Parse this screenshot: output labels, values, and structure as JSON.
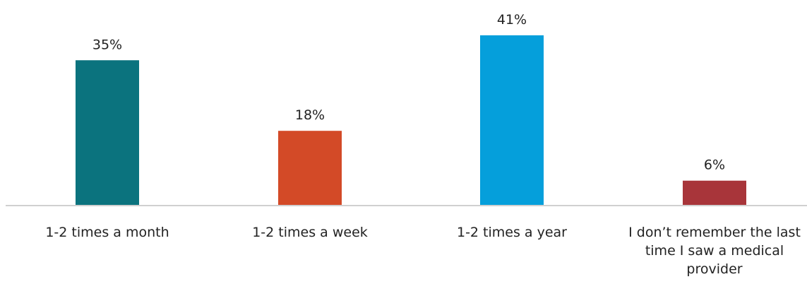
{
  "chart_data": {
    "type": "bar",
    "title": "",
    "xlabel": "",
    "ylabel": "",
    "categories": [
      "1-2 times a month",
      "1-2 times a week",
      "1-2 times a year",
      "I don’t remember the last time I saw a medical provider"
    ],
    "category_lines": [
      [
        "1-2 times a month"
      ],
      [
        "1-2 times a week"
      ],
      [
        "1-2 times a year"
      ],
      [
        "I don’t remember the last",
        "time I saw a medical",
        "provider"
      ]
    ],
    "values": [
      35,
      18,
      41,
      6
    ],
    "data_labels": [
      "35%",
      "18%",
      "41%",
      "6%"
    ],
    "colors": [
      "#0B737E",
      "#D34A27",
      "#059FDB",
      "#A8353A"
    ],
    "axis_color": "#D0D0D0",
    "ylim": [
      0,
      41
    ],
    "grid": false,
    "legend": "none"
  }
}
